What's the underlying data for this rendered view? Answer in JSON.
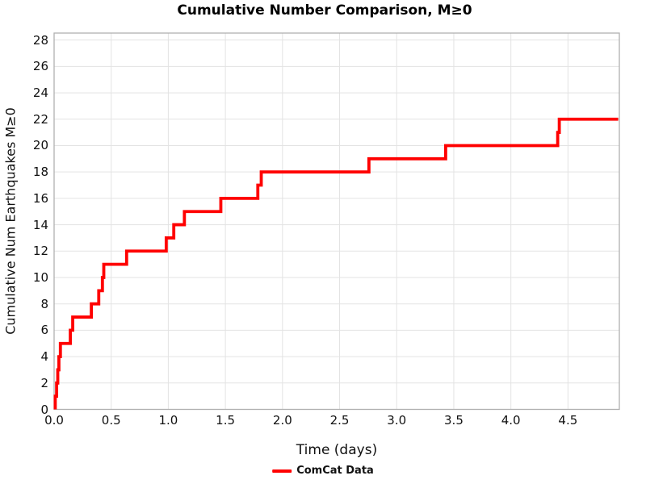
{
  "colors": {
    "series_red": "#ff0000",
    "grid": "#e3e3e3",
    "spine": "#b0b0b0",
    "text": "#111111",
    "background": "#ffffff"
  },
  "chart_data": {
    "type": "line",
    "style": "step-post",
    "title": "Cumulative Number Comparison, M≥0",
    "xlabel": "Time (days)",
    "ylabel": "Cumulative Num Earthquakes M≥0",
    "legend": [
      {
        "label": "ComCat Data",
        "color": "#ff0000",
        "position": "below-axes-center"
      }
    ],
    "grid": true,
    "xlim": [
      0,
      4.95
    ],
    "ylim": [
      0,
      28.53
    ],
    "xticks": [
      {
        "v": 0.0,
        "label": "0.0"
      },
      {
        "v": 0.5,
        "label": "0.5"
      },
      {
        "v": 1.0,
        "label": "1.0"
      },
      {
        "v": 1.5,
        "label": "1.5"
      },
      {
        "v": 2.0,
        "label": "2.0"
      },
      {
        "v": 2.5,
        "label": "2.5"
      },
      {
        "v": 3.0,
        "label": "3.0"
      },
      {
        "v": 3.5,
        "label": "3.5"
      },
      {
        "v": 4.0,
        "label": "4.0"
      },
      {
        "v": 4.5,
        "label": "4.5"
      }
    ],
    "yticks": [
      {
        "v": 0,
        "label": "0"
      },
      {
        "v": 2,
        "label": "2"
      },
      {
        "v": 4,
        "label": "4"
      },
      {
        "v": 6,
        "label": "6"
      },
      {
        "v": 8,
        "label": "8"
      },
      {
        "v": 10,
        "label": "10"
      },
      {
        "v": 12,
        "label": "12"
      },
      {
        "v": 14,
        "label": "14"
      },
      {
        "v": 16,
        "label": "16"
      },
      {
        "v": 18,
        "label": "18"
      },
      {
        "v": 20,
        "label": "20"
      },
      {
        "v": 22,
        "label": "22"
      },
      {
        "v": 24,
        "label": "24"
      },
      {
        "v": 26,
        "label": "26"
      },
      {
        "v": 28,
        "label": "28"
      }
    ],
    "series": [
      {
        "name": "ComCat Data",
        "color": "#ff0000",
        "line_width": 3.8,
        "start": {
          "x": 0.01,
          "y": 0
        },
        "event_times_days": [
          0.01,
          0.022,
          0.032,
          0.042,
          0.055,
          0.142,
          0.163,
          0.326,
          0.391,
          0.423,
          0.435,
          0.635,
          0.982,
          1.048,
          1.141,
          1.46,
          1.784,
          1.814,
          2.757,
          3.429,
          4.41,
          4.424
        ],
        "cumulative_counts": [
          1,
          2,
          3,
          4,
          5,
          6,
          7,
          8,
          9,
          10,
          11,
          12,
          13,
          14,
          15,
          16,
          17,
          18,
          19,
          20,
          21,
          22
        ],
        "end_x": 4.94
      }
    ]
  }
}
